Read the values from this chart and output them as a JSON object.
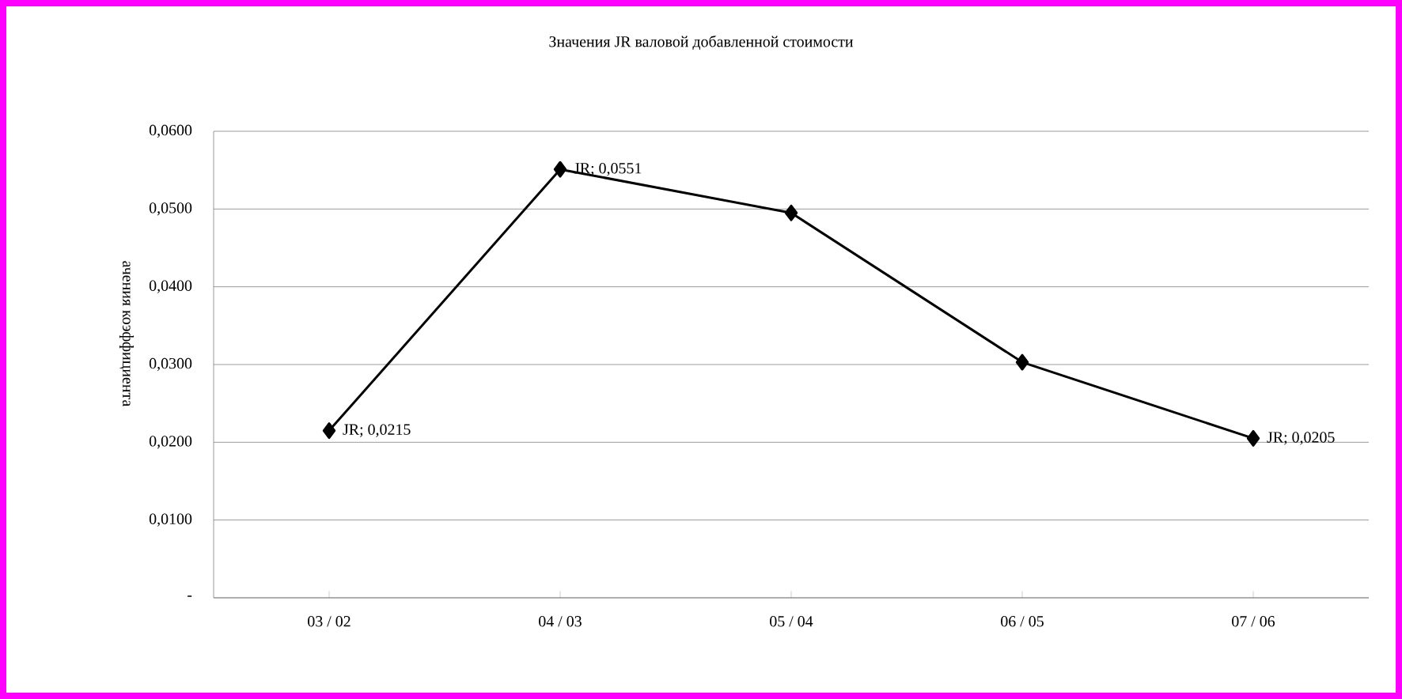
{
  "chart_data": {
    "type": "line",
    "title": "Значения JR валовой добавленной стоимости",
    "ylabel": "ачения коэффициента",
    "categories": [
      "03 / 02",
      "04 / 03",
      "05 / 04",
      "06 / 05",
      "07 / 06"
    ],
    "series": [
      {
        "color": "#000000",
        "values": [
          0.0215,
          0.0551,
          0.0495,
          0.0303,
          0.0205
        ],
        "value_labels": [
          "JR;  0,0215",
          "JR;  0,0551",
          null,
          null,
          "JR;  0,0205"
        ]
      }
    ],
    "ylim": [
      0,
      0.06
    ],
    "yticks": [
      {
        "value": 0,
        "label": "-"
      },
      {
        "value": 0.01,
        "label": "0,0100"
      },
      {
        "value": 0.02,
        "label": "0,0200"
      },
      {
        "value": 0.03,
        "label": "0,0300"
      },
      {
        "value": 0.04,
        "label": "0,0400"
      },
      {
        "value": 0.05,
        "label": "0,0500"
      },
      {
        "value": 0.06,
        "label": "0,0600"
      }
    ],
    "grid": "y",
    "marker": "diamond",
    "line_style": "solid"
  }
}
